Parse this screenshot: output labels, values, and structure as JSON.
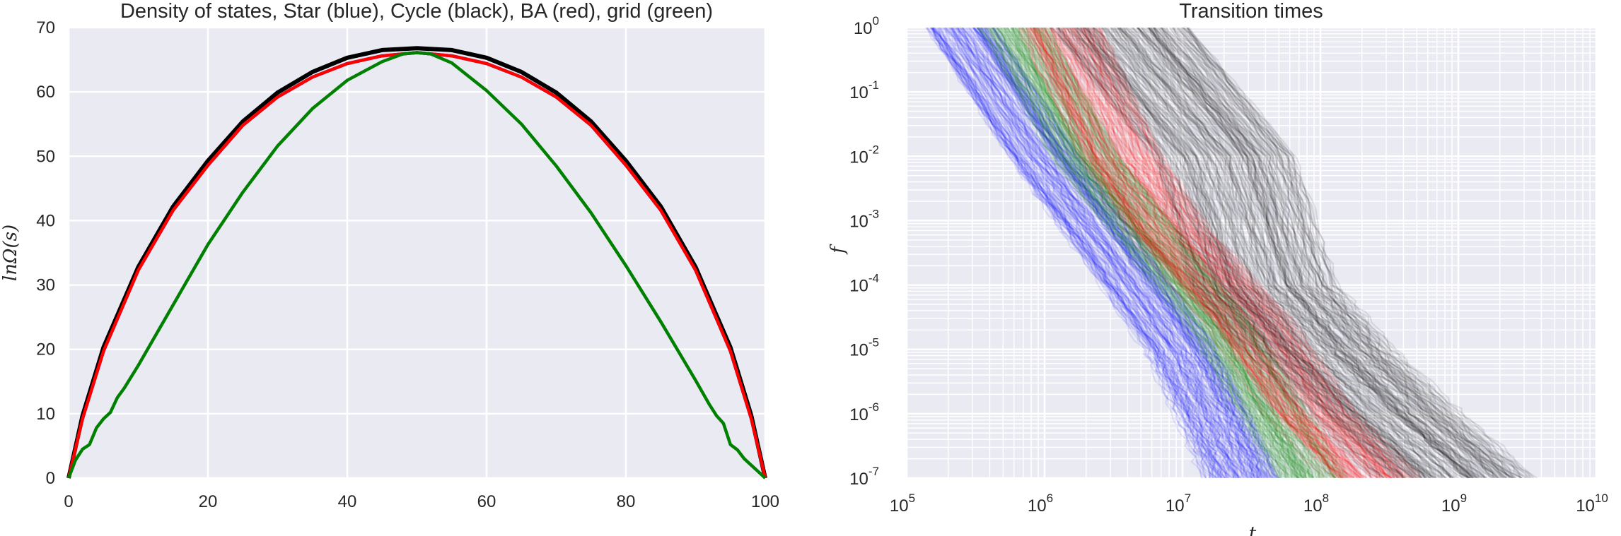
{
  "chart_data": [
    {
      "type": "line",
      "title": "Density of states, Star (blue), Cycle (black), BA (red), grid (green)",
      "xlabel": "",
      "ylabel": "lnΩ(s)",
      "xlim": [
        0,
        100
      ],
      "ylim": [
        0,
        70
      ],
      "xticks": [
        "0",
        "20",
        "40",
        "60",
        "80",
        "100"
      ],
      "yticks": [
        "0",
        "10",
        "20",
        "30",
        "40",
        "50",
        "60",
        "70"
      ],
      "grid": true,
      "background": "#eaeaf2",
      "series": [
        {
          "color": "#0000ff",
          "x": [
            0,
            2,
            5,
            10,
            15,
            20,
            25,
            30,
            35,
            40,
            45,
            50,
            55,
            60,
            65,
            70,
            75,
            80,
            85,
            90,
            95,
            98,
            100
          ],
          "y": [
            0,
            9.2,
            19.7,
            32.3,
            41.6,
            48.6,
            54.8,
            59.2,
            62.3,
            64.4,
            65.6,
            66.1,
            65.6,
            64.4,
            62.3,
            59.2,
            54.8,
            48.6,
            41.6,
            32.3,
            19.7,
            9.2,
            0
          ]
        },
        {
          "color": "#000000",
          "x": [
            0,
            2,
            5,
            10,
            15,
            20,
            25,
            30,
            35,
            40,
            45,
            50,
            55,
            60,
            65,
            70,
            75,
            80,
            85,
            90,
            95,
            98,
            100
          ],
          "y": [
            0,
            9.7,
            20.3,
            32.8,
            42.2,
            49.3,
            55.4,
            59.9,
            63.1,
            65.3,
            66.5,
            66.8,
            66.5,
            65.3,
            63.1,
            59.9,
            55.4,
            49.3,
            42.2,
            32.8,
            20.3,
            9.7,
            0
          ]
        },
        {
          "color": "#ff0000",
          "x": [
            0,
            2,
            5,
            10,
            15,
            20,
            25,
            30,
            35,
            40,
            45,
            50,
            55,
            60,
            65,
            70,
            75,
            80,
            85,
            90,
            95,
            98,
            100
          ],
          "y": [
            0,
            9.2,
            19.7,
            32.3,
            41.6,
            48.6,
            54.8,
            59.2,
            62.3,
            64.4,
            65.6,
            66.1,
            65.6,
            64.4,
            62.3,
            59.2,
            54.8,
            48.6,
            41.6,
            32.3,
            19.7,
            9.2,
            0
          ]
        },
        {
          "color": "#008000",
          "x": [
            0,
            1,
            2,
            3,
            4,
            5,
            6,
            7,
            8,
            10,
            15,
            20,
            25,
            30,
            35,
            40,
            45,
            48,
            50,
            52,
            55,
            60,
            65,
            70,
            75,
            80,
            85,
            90,
            92,
            93,
            94,
            95,
            96,
            97,
            98,
            99,
            100
          ],
          "y": [
            0,
            2.8,
            4.5,
            5.2,
            7.8,
            9.2,
            10.2,
            12.5,
            14.0,
            17.5,
            26.9,
            36.3,
            44.4,
            51.6,
            57.4,
            61.8,
            64.7,
            65.9,
            66.1,
            65.9,
            64.5,
            60.2,
            55.0,
            48.5,
            41.2,
            33.0,
            24.3,
            15.2,
            11.4,
            9.7,
            8.5,
            5.2,
            4.4,
            3.0,
            2.0,
            1.0,
            0
          ]
        }
      ]
    },
    {
      "type": "line",
      "title": "Transition times",
      "xlabel": "t",
      "ylabel": "f",
      "xscale": "log",
      "yscale": "log",
      "xlim": [
        100000,
        10000000000
      ],
      "ylim": [
        1e-07,
        1
      ],
      "xticks": [
        {
          "base": "10",
          "exp": "5"
        },
        {
          "base": "10",
          "exp": "6"
        },
        {
          "base": "10",
          "exp": "7"
        },
        {
          "base": "10",
          "exp": "8"
        },
        {
          "base": "10",
          "exp": "9"
        },
        {
          "base": "10",
          "exp": "10"
        }
      ],
      "yticks": [
        {
          "base": "10",
          "exp": "0"
        },
        {
          "base": "10",
          "exp": "-1"
        },
        {
          "base": "10",
          "exp": "-2"
        },
        {
          "base": "10",
          "exp": "-3"
        },
        {
          "base": "10",
          "exp": "-4"
        },
        {
          "base": "10",
          "exp": "-5"
        },
        {
          "base": "10",
          "exp": "-6"
        },
        {
          "base": "10",
          "exp": "-7"
        }
      ],
      "grid": true,
      "background": "#eaeaf2",
      "series": [
        {
          "color": "#0000ff",
          "runs": 150,
          "spread_decades": 0.25,
          "x": [
            250000,
            1000000,
            3000000,
            10000000,
            17000000,
            28000000
          ],
          "y": [
            1,
            0.01,
            0.0004,
            1e-05,
            1e-06,
            1e-07
          ]
        },
        {
          "color": "#008000",
          "runs": 150,
          "spread_decades": 0.25,
          "x": [
            600000,
            2000000,
            6000000,
            20000000,
            45000000,
            85000000
          ],
          "y": [
            1,
            0.01,
            0.0005,
            2e-05,
            1e-06,
            1e-07
          ]
        },
        {
          "color": "#ff0000",
          "runs": 150,
          "spread_decades": 0.3,
          "x": [
            1300000,
            3600000,
            8000000,
            30000000,
            90000000,
            250000000
          ],
          "y": [
            1,
            0.01,
            0.0007,
            3e-05,
            1e-06,
            1e-07
          ]
        },
        {
          "color": "#000000",
          "runs": 200,
          "spread_decades": 0.5,
          "x": [
            3500000,
            20000000,
            40000000,
            100000000,
            300000000,
            1000000000
          ],
          "y": [
            1,
            0.01,
            0.0001,
            1e-05,
            1e-06,
            1e-07
          ]
        }
      ]
    }
  ]
}
